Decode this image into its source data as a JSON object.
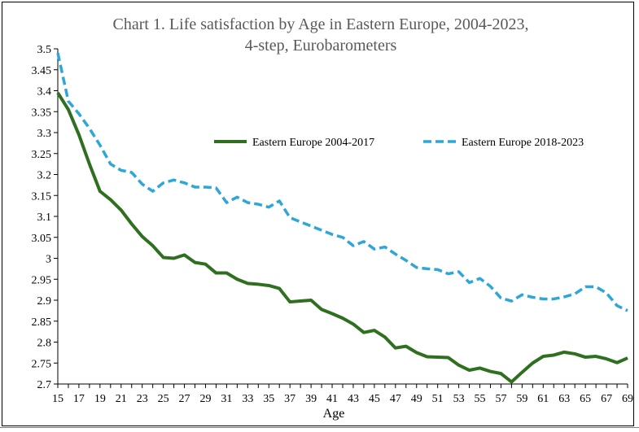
{
  "chart_data": {
    "type": "line",
    "title": "Chart 1.  Life satisfaction by Age in Eastern Europe, 2004-2023,",
    "subtitle": "4-step, Eurobarometers",
    "xlabel": "Age",
    "ylabel": "",
    "xlim": [
      15,
      69
    ],
    "ylim": [
      2.7,
      3.5
    ],
    "x_ticks": [
      "15",
      "17",
      "19",
      "21",
      "23",
      "25",
      "27",
      "29",
      "31",
      "33",
      "35",
      "37",
      "39",
      "41",
      "43",
      "45",
      "47",
      "49",
      "51",
      "53",
      "55",
      "57",
      "59",
      "61",
      "63",
      "65",
      "67",
      "69"
    ],
    "y_ticks": [
      "3.5",
      "3.45",
      "3.4",
      "3.35",
      "3.3",
      "3.25",
      "3.2",
      "3.15",
      "3.1",
      "3.05",
      "3",
      "2.95",
      "2.9",
      "2.85",
      "2.8",
      "2.75",
      "2.7"
    ],
    "legend_position": "top-right",
    "grid": false,
    "x": [
      15,
      16,
      17,
      18,
      19,
      20,
      21,
      22,
      23,
      24,
      25,
      26,
      27,
      28,
      29,
      30,
      31,
      32,
      33,
      34,
      35,
      36,
      37,
      38,
      39,
      40,
      41,
      42,
      43,
      44,
      45,
      46,
      47,
      48,
      49,
      50,
      51,
      52,
      53,
      54,
      55,
      56,
      57,
      58,
      59,
      60,
      61,
      62,
      63,
      64,
      65,
      66,
      67,
      68,
      69
    ],
    "series": [
      {
        "name": "Eastern Europe 2004-2017",
        "color": "#2e7020",
        "style": "solid",
        "values": [
          3.395,
          3.355,
          3.295,
          3.225,
          3.16,
          3.14,
          3.115,
          3.082,
          3.052,
          3.03,
          3.002,
          3.0,
          3.008,
          2.99,
          2.986,
          2.965,
          2.965,
          2.95,
          2.94,
          2.938,
          2.935,
          2.928,
          2.896,
          2.898,
          2.9,
          2.878,
          2.868,
          2.857,
          2.843,
          2.823,
          2.828,
          2.812,
          2.786,
          2.79,
          2.775,
          2.765,
          2.764,
          2.763,
          2.745,
          2.733,
          2.738,
          2.73,
          2.725,
          2.705,
          2.728,
          2.75,
          2.766,
          2.769,
          2.776,
          2.772,
          2.764,
          2.766,
          2.76,
          2.751,
          2.762
        ]
      },
      {
        "name": "Eastern Europe 2018-2023",
        "color": "#2ea6d6",
        "style": "dashed",
        "values": [
          3.49,
          3.375,
          3.345,
          3.31,
          3.27,
          3.225,
          3.21,
          3.205,
          3.177,
          3.16,
          3.18,
          3.187,
          3.18,
          3.17,
          3.17,
          3.168,
          3.133,
          3.146,
          3.133,
          3.129,
          3.122,
          3.137,
          3.097,
          3.087,
          3.077,
          3.067,
          3.057,
          3.05,
          3.03,
          3.04,
          3.022,
          3.027,
          3.01,
          2.995,
          2.978,
          2.975,
          2.973,
          2.963,
          2.968,
          2.942,
          2.952,
          2.933,
          2.905,
          2.898,
          2.913,
          2.907,
          2.903,
          2.903,
          2.908,
          2.915,
          2.932,
          2.932,
          2.917,
          2.887,
          2.875
        ]
      }
    ]
  }
}
